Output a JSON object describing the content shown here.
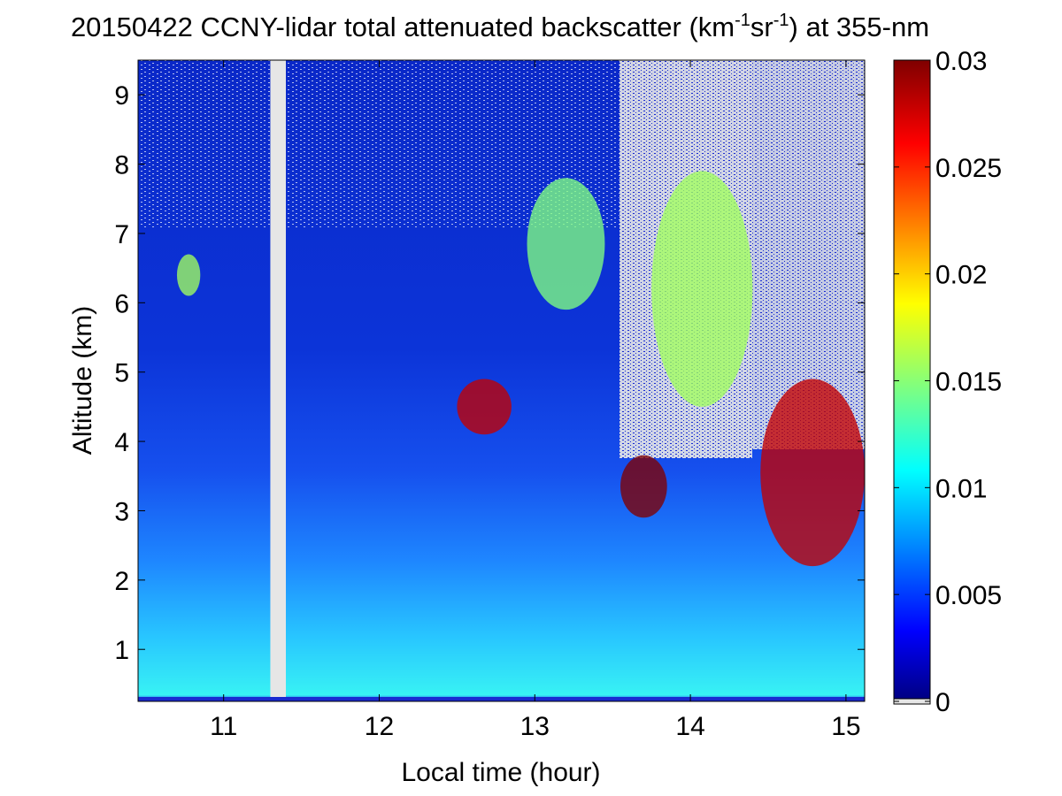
{
  "chart_data": {
    "type": "heatmap",
    "title": {
      "prefix": "20150422 CCNY-lidar total attenuated backscatter (km",
      "sup1": "-1",
      "mid": "sr",
      "sup2": "-1",
      "suffix": ") at 355-nm"
    },
    "xlabel": "Local time (hour)",
    "ylabel": "Altitude (km)",
    "xlim": [
      10.45,
      15.12
    ],
    "ylim": [
      0.25,
      9.5
    ],
    "x_ticks": [
      "11",
      "12",
      "13",
      "14",
      "15"
    ],
    "y_ticks": [
      "1",
      "2",
      "3",
      "4",
      "5",
      "6",
      "7",
      "8",
      "9"
    ],
    "colorbar": {
      "colormap": "jet",
      "range": [
        0,
        0.03
      ],
      "ticks": [
        "0",
        "0.005",
        "0.01",
        "0.015",
        "0.02",
        "0.025",
        "0.03"
      ]
    },
    "data_gap": {
      "x": [
        11.3,
        11.4
      ],
      "color": "#e6e6e6"
    },
    "features": [
      {
        "x": [
          10.45,
          15.12
        ],
        "y": [
          0.3,
          1.2
        ],
        "value": 0.012
      },
      {
        "x": [
          10.45,
          15.12
        ],
        "y": [
          1.2,
          2.5
        ],
        "value": 0.008
      },
      {
        "x": [
          10.45,
          15.12
        ],
        "y": [
          2.5,
          9.5
        ],
        "value": 0.003
      },
      {
        "x": [
          10.7,
          10.85
        ],
        "y": [
          6.1,
          6.7
        ],
        "value": 0.016
      },
      {
        "x": [
          12.5,
          12.85
        ],
        "y": [
          4.1,
          4.9
        ],
        "value": 0.028
      },
      {
        "x": [
          12.95,
          13.45
        ],
        "y": [
          5.9,
          7.8
        ],
        "value": 0.015
      },
      {
        "x": [
          13.55,
          13.85
        ],
        "y": [
          2.9,
          3.8
        ],
        "value": 0.03
      },
      {
        "x": [
          13.75,
          14.4
        ],
        "y": [
          4.5,
          7.9
        ],
        "value": 0.016
      },
      {
        "x": [
          14.45,
          15.12
        ],
        "y": [
          2.2,
          4.9
        ],
        "value": 0.028
      }
    ]
  }
}
